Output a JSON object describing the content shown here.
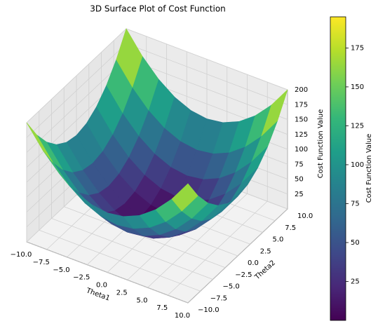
{
  "chart_data": {
    "type": "surface",
    "title": "3D Surface Plot of Cost Function",
    "xlabel": "Theta1",
    "ylabel": "Theta2",
    "zlabel": "Cost Function Value",
    "colorbar_label": "Cost Function Value",
    "colormap": "viridis",
    "x": [
      -10,
      -8,
      -6,
      -4,
      -2,
      0,
      2,
      4,
      6,
      8,
      10
    ],
    "y": [
      -10,
      -8,
      -6,
      -4,
      -2,
      0,
      2,
      4,
      6,
      8,
      10
    ],
    "z": [
      [
        200,
        164,
        136,
        116,
        104,
        100,
        104,
        116,
        136,
        164,
        200
      ],
      [
        164,
        128,
        100,
        80,
        68,
        64,
        68,
        80,
        100,
        128,
        164
      ],
      [
        136,
        100,
        72,
        52,
        40,
        36,
        40,
        52,
        72,
        100,
        136
      ],
      [
        116,
        80,
        52,
        32,
        20,
        16,
        20,
        32,
        52,
        80,
        116
      ],
      [
        104,
        68,
        40,
        20,
        8,
        4,
        8,
        20,
        40,
        68,
        104
      ],
      [
        100,
        64,
        36,
        16,
        4,
        0,
        4,
        16,
        36,
        64,
        100
      ],
      [
        104,
        68,
        40,
        20,
        8,
        4,
        8,
        20,
        40,
        68,
        104
      ],
      [
        116,
        80,
        52,
        32,
        20,
        16,
        20,
        32,
        52,
        80,
        116
      ],
      [
        136,
        100,
        72,
        52,
        40,
        36,
        40,
        52,
        72,
        100,
        136
      ],
      [
        164,
        128,
        100,
        80,
        68,
        64,
        68,
        80,
        100,
        128,
        164
      ],
      [
        200,
        164,
        136,
        116,
        104,
        100,
        104,
        116,
        136,
        164,
        200
      ]
    ],
    "xlim": [
      -10,
      10
    ],
    "ylim": [
      -10,
      10
    ],
    "zlim": [
      0,
      200
    ],
    "xticks": [
      {
        "value": -10,
        "label": "−10.0"
      },
      {
        "value": -7.5,
        "label": "−7.5"
      },
      {
        "value": -5,
        "label": "−5.0"
      },
      {
        "value": -2.5,
        "label": "−2.5"
      },
      {
        "value": 0,
        "label": "0.0"
      },
      {
        "value": 2.5,
        "label": "2.5"
      },
      {
        "value": 5,
        "label": "5.0"
      },
      {
        "value": 7.5,
        "label": "7.5"
      },
      {
        "value": 10,
        "label": "10.0"
      }
    ],
    "yticks": [
      {
        "value": -10,
        "label": "−10.0"
      },
      {
        "value": -7.5,
        "label": "−7.5"
      },
      {
        "value": -5,
        "label": "−5.0"
      },
      {
        "value": -2.5,
        "label": "−2.5"
      },
      {
        "value": 0,
        "label": "0.0"
      },
      {
        "value": 2.5,
        "label": "2.5"
      },
      {
        "value": 5,
        "label": "5.0"
      },
      {
        "value": 7.5,
        "label": "7.5"
      },
      {
        "value": 10,
        "label": "10.0"
      }
    ],
    "zticks": [
      25,
      50,
      75,
      100,
      125,
      150,
      175,
      200
    ],
    "clim": [
      0,
      195
    ],
    "colorbar_ticks": [
      25,
      50,
      75,
      100,
      125,
      150,
      175
    ],
    "grid": true
  }
}
